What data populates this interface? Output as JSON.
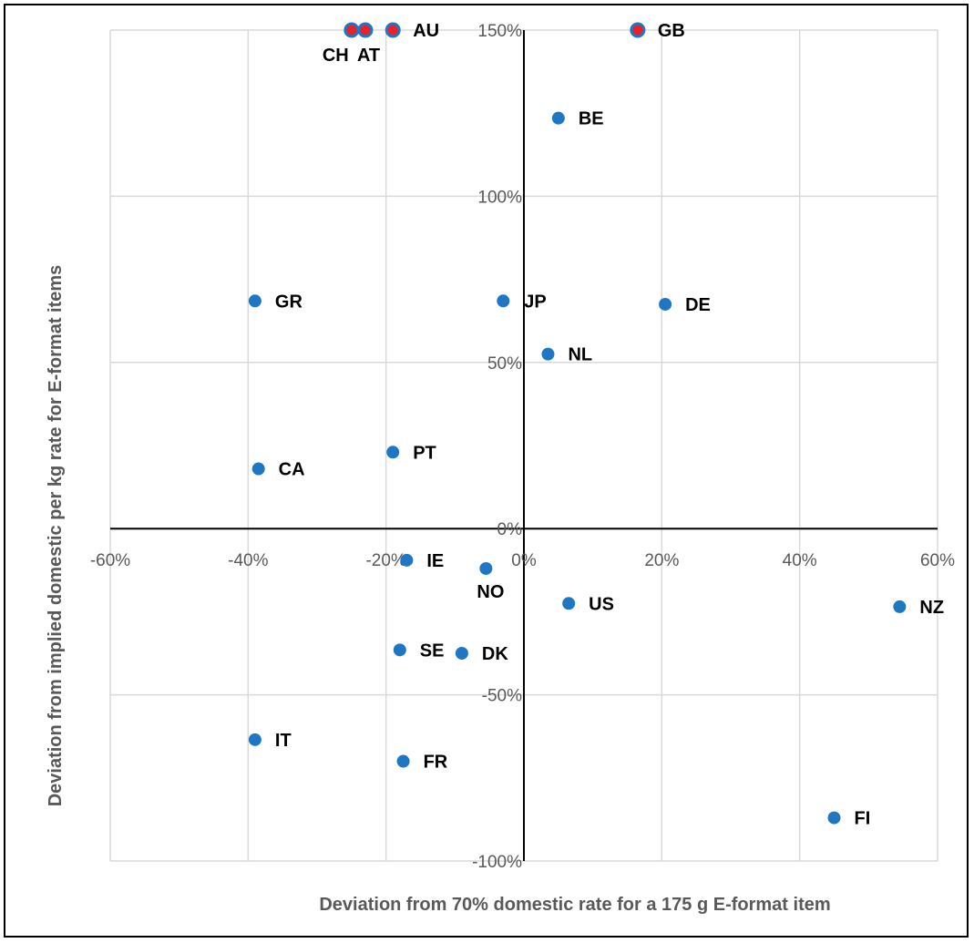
{
  "chart_data": {
    "type": "scatter",
    "xlabel": "Deviation from 70% domestic rate for a 175 g E-format item",
    "ylabel": "Deviation from implied domestic per kg rate for E-format items",
    "xlim": [
      -60,
      60
    ],
    "ylim": [
      -100,
      150
    ],
    "x_ticks": [
      -60,
      -40,
      -20,
      0,
      20,
      40,
      60
    ],
    "y_ticks": [
      -100,
      -50,
      0,
      50,
      100,
      150
    ],
    "x_tick_labels": [
      "-60%",
      "-40%",
      "-20%",
      "0%",
      "20%",
      "40%",
      "60%"
    ],
    "y_tick_labels": [
      "-100%",
      "-50%",
      "0%",
      "50%",
      "100%",
      "150%"
    ],
    "grid": true,
    "colors": {
      "point": "#1f77c4",
      "capped_point_fill": "#e8212a",
      "gridline": "#d9d9d9",
      "axis": "#000000"
    },
    "points": [
      {
        "label": "CH",
        "x": -25,
        "y": 150,
        "capped": true
      },
      {
        "label": "AT",
        "x": -23,
        "y": 150,
        "capped": true
      },
      {
        "label": "AU",
        "x": -19,
        "y": 150,
        "capped": true
      },
      {
        "label": "GB",
        "x": 16.5,
        "y": 150,
        "capped": true
      },
      {
        "label": "BE",
        "x": 5,
        "y": 123.5
      },
      {
        "label": "GR",
        "x": -39,
        "y": 68.5
      },
      {
        "label": "JP",
        "x": -3,
        "y": 68.5
      },
      {
        "label": "DE",
        "x": 20.5,
        "y": 67.5
      },
      {
        "label": "NL",
        "x": 3.5,
        "y": 52.5
      },
      {
        "label": "PT",
        "x": -19,
        "y": 23
      },
      {
        "label": "CA",
        "x": -38.5,
        "y": 18
      },
      {
        "label": "IE",
        "x": -17,
        "y": -9.5
      },
      {
        "label": "NO",
        "x": -5.5,
        "y": -12
      },
      {
        "label": "US",
        "x": 6.5,
        "y": -22.5
      },
      {
        "label": "NZ",
        "x": 54.5,
        "y": -23.5
      },
      {
        "label": "SE",
        "x": -18,
        "y": -36.5
      },
      {
        "label": "DK",
        "x": -9,
        "y": -37.5
      },
      {
        "label": "IT",
        "x": -39,
        "y": -63.5
      },
      {
        "label": "FR",
        "x": -17.5,
        "y": -70
      },
      {
        "label": "FI",
        "x": 45,
        "y": -87
      }
    ]
  }
}
